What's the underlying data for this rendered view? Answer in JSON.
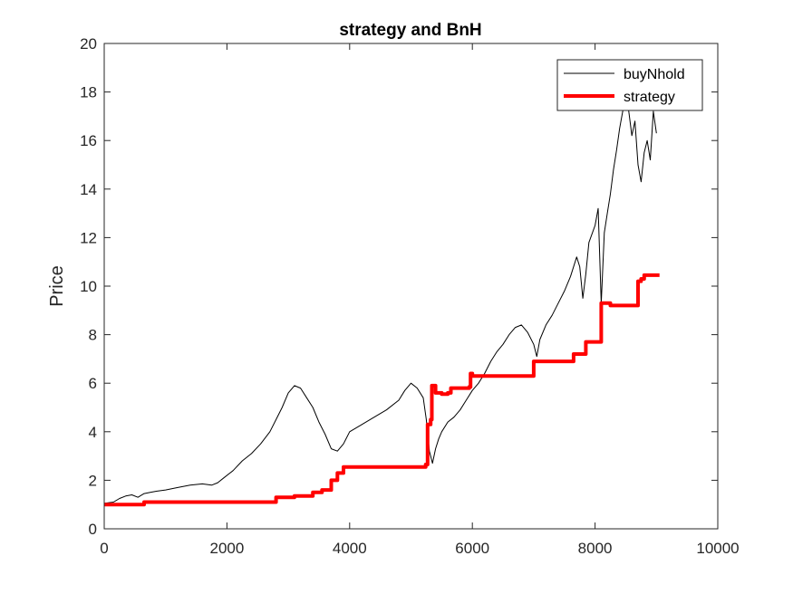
{
  "chart_data": {
    "type": "line",
    "title": "strategy and BnH",
    "xlabel": "",
    "ylabel": "Price",
    "xlim": [
      0,
      10000
    ],
    "ylim": [
      0,
      20
    ],
    "xticks": [
      0,
      2000,
      4000,
      6000,
      8000,
      10000
    ],
    "yticks": [
      0,
      2,
      4,
      6,
      8,
      10,
      12,
      14,
      16,
      18,
      20
    ],
    "grid": false,
    "legend_position": "top-right",
    "series": [
      {
        "name": "buyNhold",
        "color": "#000000",
        "style": "thin-line",
        "x": [
          0,
          150,
          250,
          350,
          450,
          550,
          650,
          750,
          850,
          1000,
          1200,
          1400,
          1600,
          1750,
          1850,
          1950,
          2100,
          2250,
          2400,
          2550,
          2700,
          2800,
          2900,
          3000,
          3100,
          3200,
          3300,
          3400,
          3500,
          3600,
          3700,
          3800,
          3900,
          4000,
          4200,
          4400,
          4600,
          4800,
          4900,
          5000,
          5100,
          5200,
          5250,
          5300,
          5350,
          5400,
          5450,
          5500,
          5600,
          5700,
          5800,
          5900,
          6000,
          6100,
          6200,
          6300,
          6400,
          6500,
          6600,
          6700,
          6800,
          6900,
          7000,
          7050,
          7100,
          7200,
          7300,
          7400,
          7500,
          7600,
          7700,
          7750,
          7800,
          7850,
          7900,
          8000,
          8050,
          8100,
          8150,
          8200,
          8250,
          8300,
          8350,
          8400,
          8450,
          8500,
          8550,
          8600,
          8650,
          8700,
          8750,
          8800,
          8850,
          8900,
          8950,
          9000
        ],
        "y": [
          1.05,
          1.1,
          1.25,
          1.35,
          1.4,
          1.3,
          1.45,
          1.5,
          1.55,
          1.6,
          1.7,
          1.8,
          1.85,
          1.8,
          1.9,
          2.1,
          2.4,
          2.8,
          3.1,
          3.5,
          4.0,
          4.5,
          5.0,
          5.6,
          5.9,
          5.8,
          5.4,
          5.0,
          4.4,
          3.9,
          3.3,
          3.2,
          3.5,
          4.0,
          4.3,
          4.6,
          4.9,
          5.3,
          5.7,
          6.0,
          5.8,
          5.4,
          4.5,
          3.2,
          2.7,
          3.3,
          3.7,
          4.0,
          4.4,
          4.6,
          4.9,
          5.3,
          5.7,
          6.0,
          6.4,
          6.9,
          7.3,
          7.6,
          8.0,
          8.3,
          8.4,
          8.1,
          7.6,
          7.1,
          7.8,
          8.4,
          8.8,
          9.3,
          9.8,
          10.4,
          11.2,
          10.8,
          9.5,
          10.5,
          11.8,
          12.5,
          13.2,
          9.3,
          12.2,
          13.0,
          13.8,
          14.8,
          15.6,
          16.5,
          17.2,
          17.8,
          17.2,
          16.2,
          16.8,
          15.0,
          14.3,
          15.5,
          16.0,
          15.2,
          17.2,
          16.3
        ]
      },
      {
        "name": "strategy",
        "color": "#ff0000",
        "style": "thick-step",
        "x": [
          0,
          650,
          2700,
          2800,
          3100,
          3300,
          3400,
          3500,
          3550,
          3600,
          3700,
          3800,
          3900,
          5200,
          5240,
          5270,
          5320,
          5340,
          5400,
          5500,
          5600,
          5650,
          5800,
          5950,
          5970,
          6000,
          6950,
          7000,
          7100,
          7600,
          7650,
          7800,
          7850,
          8050,
          8100,
          8200,
          8250,
          8650,
          8700,
          8750,
          8800,
          9050
        ],
        "y": [
          1.0,
          1.1,
          1.1,
          1.3,
          1.35,
          1.35,
          1.5,
          1.5,
          1.6,
          1.6,
          2.0,
          2.3,
          2.55,
          2.55,
          2.65,
          4.3,
          4.5,
          5.9,
          5.6,
          5.55,
          5.6,
          5.8,
          5.8,
          5.85,
          6.4,
          6.3,
          6.3,
          6.9,
          6.9,
          6.9,
          7.2,
          7.2,
          7.7,
          7.7,
          9.3,
          9.3,
          9.2,
          9.2,
          10.2,
          10.3,
          10.45,
          10.45
        ]
      }
    ]
  }
}
